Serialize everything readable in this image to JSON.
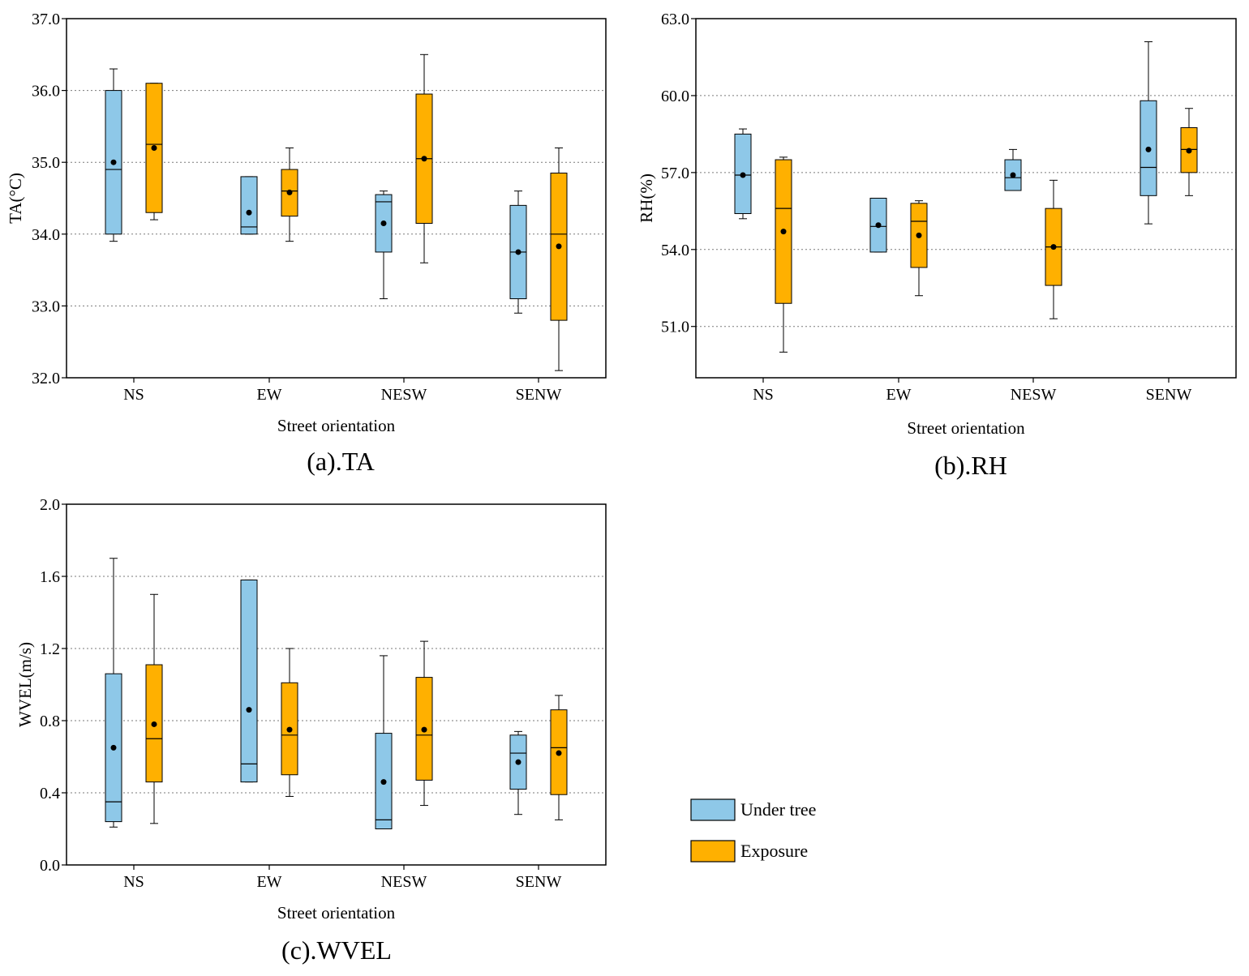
{
  "colors": {
    "under_tree": "#8ec8e8",
    "exposure": "#ffb000",
    "grid": "#7a7a7a",
    "frame": "#000000"
  },
  "legend": {
    "items": [
      "Under tree",
      "Exposure"
    ]
  },
  "chart_data": [
    {
      "type": "box",
      "panel": "a",
      "caption": "(a).TA",
      "ylabel": "TA(°C)",
      "xlabel": "Street orientation",
      "ylim": [
        32.0,
        37.0
      ],
      "yticks": [
        32.0,
        33.0,
        34.0,
        35.0,
        36.0,
        37.0
      ],
      "tick_format": 1,
      "categories": [
        "NS",
        "EW",
        "NESW",
        "SENW"
      ],
      "series": [
        {
          "name": "Under tree",
          "boxes": [
            {
              "min": 33.9,
              "q1": 34.0,
              "median": 34.9,
              "q3": 36.0,
              "max": 36.3,
              "mean": 35.0
            },
            {
              "min": 34.0,
              "q1": 34.0,
              "median": 34.1,
              "q3": 34.8,
              "max": 34.8,
              "mean": 34.3
            },
            {
              "min": 33.1,
              "q1": 33.75,
              "median": 34.45,
              "q3": 34.55,
              "max": 34.6,
              "mean": 34.15
            },
            {
              "min": 32.9,
              "q1": 33.1,
              "median": 33.75,
              "q3": 34.4,
              "max": 34.6,
              "mean": 33.75
            }
          ]
        },
        {
          "name": "Exposure",
          "boxes": [
            {
              "min": 34.2,
              "q1": 34.3,
              "median": 35.25,
              "q3": 36.1,
              "max": 36.1,
              "mean": 35.2
            },
            {
              "min": 33.9,
              "q1": 34.25,
              "median": 34.6,
              "q3": 34.9,
              "max": 35.2,
              "mean": 34.58
            },
            {
              "min": 33.6,
              "q1": 34.15,
              "median": 35.05,
              "q3": 35.95,
              "max": 36.5,
              "mean": 35.05
            },
            {
              "min": 32.1,
              "q1": 32.8,
              "median": 34.0,
              "q3": 34.85,
              "max": 35.2,
              "mean": 33.83
            }
          ]
        }
      ]
    },
    {
      "type": "box",
      "panel": "b",
      "caption": "(b).RH",
      "ylabel": "RH(%)",
      "xlabel": "Street orientation",
      "ylim": [
        49.0,
        63.0
      ],
      "yticks": [
        51.0,
        54.0,
        57.0,
        60.0,
        63.0
      ],
      "tick_format": 1,
      "categories": [
        "NS",
        "EW",
        "NESW",
        "SENW"
      ],
      "series": [
        {
          "name": "Under tree",
          "boxes": [
            {
              "min": 55.2,
              "q1": 55.4,
              "median": 56.9,
              "q3": 58.5,
              "max": 58.7,
              "mean": 56.9
            },
            {
              "min": 53.9,
              "q1": 53.9,
              "median": 54.9,
              "q3": 56.0,
              "max": 56.0,
              "mean": 54.95
            },
            {
              "min": 56.3,
              "q1": 56.3,
              "median": 56.8,
              "q3": 57.5,
              "max": 57.9,
              "mean": 56.9
            },
            {
              "min": 55.0,
              "q1": 56.1,
              "median": 57.2,
              "q3": 59.8,
              "max": 62.1,
              "mean": 57.9
            }
          ]
        },
        {
          "name": "Exposure",
          "boxes": [
            {
              "min": 50.0,
              "q1": 51.9,
              "median": 55.6,
              "q3": 57.5,
              "max": 57.6,
              "mean": 54.7
            },
            {
              "min": 52.2,
              "q1": 53.3,
              "median": 55.1,
              "q3": 55.8,
              "max": 55.9,
              "mean": 54.55
            },
            {
              "min": 51.3,
              "q1": 52.6,
              "median": 54.1,
              "q3": 55.6,
              "max": 56.7,
              "mean": 54.1
            },
            {
              "min": 56.1,
              "q1": 57.0,
              "median": 57.9,
              "q3": 58.75,
              "max": 59.5,
              "mean": 57.85
            }
          ]
        }
      ]
    },
    {
      "type": "box",
      "panel": "c",
      "caption": "(c).WVEL",
      "ylabel": "WVEL(m/s)",
      "xlabel": "Street orientation",
      "ylim": [
        0.0,
        2.0
      ],
      "yticks": [
        0.0,
        0.4,
        0.8,
        1.2,
        1.6,
        2.0
      ],
      "tick_format": 1,
      "categories": [
        "NS",
        "EW",
        "NESW",
        "SENW"
      ],
      "series": [
        {
          "name": "Under tree",
          "boxes": [
            {
              "min": 0.21,
              "q1": 0.24,
              "median": 0.35,
              "q3": 1.06,
              "max": 1.7,
              "mean": 0.65
            },
            {
              "min": 0.46,
              "q1": 0.46,
              "median": 0.56,
              "q3": 1.58,
              "max": 1.58,
              "mean": 0.86
            },
            {
              "min": 0.2,
              "q1": 0.2,
              "median": 0.25,
              "q3": 0.73,
              "max": 1.16,
              "mean": 0.46
            },
            {
              "min": 0.28,
              "q1": 0.42,
              "median": 0.62,
              "q3": 0.72,
              "max": 0.74,
              "mean": 0.57
            }
          ]
        },
        {
          "name": "Exposure",
          "boxes": [
            {
              "min": 0.23,
              "q1": 0.46,
              "median": 0.7,
              "q3": 1.11,
              "max": 1.5,
              "mean": 0.78
            },
            {
              "min": 0.38,
              "q1": 0.5,
              "median": 0.72,
              "q3": 1.01,
              "max": 1.2,
              "mean": 0.75
            },
            {
              "min": 0.33,
              "q1": 0.47,
              "median": 0.72,
              "q3": 1.04,
              "max": 1.24,
              "mean": 0.75
            },
            {
              "min": 0.25,
              "q1": 0.39,
              "median": 0.65,
              "q3": 0.86,
              "max": 0.94,
              "mean": 0.62
            }
          ]
        }
      ]
    }
  ]
}
